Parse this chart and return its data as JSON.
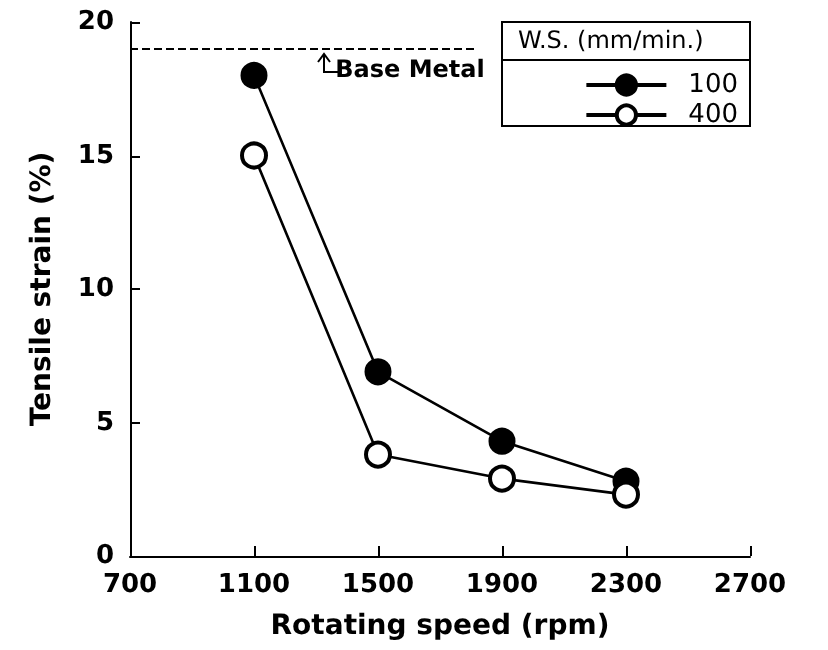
{
  "chart_data": {
    "type": "line",
    "xlabel": "Rotating speed (rpm)",
    "ylabel": "Tensile strain (%)",
    "legend_title": "W.S. (mm/min.)",
    "x": [
      1100,
      1500,
      1900,
      2300
    ],
    "series": [
      {
        "name": "100",
        "color": "#000000",
        "marker": "circle",
        "values": [
          18,
          6.9,
          4.3,
          2.8
        ]
      },
      {
        "name": "400",
        "color": "#000000",
        "marker": "open_circle",
        "values": [
          15,
          3.8,
          2.9,
          2.3
        ]
      }
    ],
    "xlim": [
      700,
      2700
    ],
    "xticks": [
      700,
      1100,
      1500,
      1900,
      2300,
      2700
    ],
    "ylim": [
      0,
      20
    ],
    "yticks": [
      0,
      5,
      10,
      15,
      20
    ],
    "ref_lines": [
      {
        "axis": "y",
        "value": 19,
        "label": "Base Metal",
        "line_style": "dashed"
      }
    ],
    "grid": false,
    "legend": "top right",
    "line_style": "solid"
  }
}
